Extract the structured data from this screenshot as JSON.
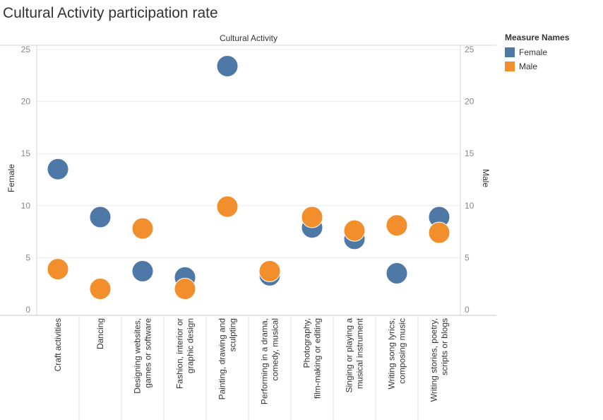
{
  "title": "Cultural Activity participation rate",
  "legend": {
    "title": "Measure Names",
    "items": [
      {
        "label": "Female",
        "color": "#4e79a7"
      },
      {
        "label": "Male",
        "color": "#f28e2b"
      }
    ]
  },
  "chart_data": {
    "type": "scatter",
    "title": "Cultural Activity participation rate",
    "column_header": "Cultural Activity",
    "ylabel_left": "Female",
    "ylabel_right": "Male",
    "ylim": [
      0,
      25
    ],
    "yticks": [
      0,
      5,
      10,
      15,
      20,
      25
    ],
    "grid": true,
    "legend_position": "top-right",
    "categories": [
      [
        "Craft activities"
      ],
      [
        "Dancing"
      ],
      [
        "Designing websites,",
        "games or software"
      ],
      [
        "Fashion, interior or",
        "graphic design"
      ],
      [
        "Painting, drawing and",
        "sculpting"
      ],
      [
        "Performing in a drama,",
        "comedy, musical"
      ],
      [
        "Photography,",
        "film-making or editing"
      ],
      [
        "Singing or playing a",
        "musical instrument"
      ],
      [
        "Writing song lyrics,",
        "composing music"
      ],
      [
        "Writing stories, poetry,",
        "scripts or blogs"
      ]
    ],
    "series": [
      {
        "name": "Female",
        "color": "#4e79a7",
        "values": [
          13.5,
          8.9,
          3.7,
          3.1,
          23.4,
          3.3,
          7.9,
          6.8,
          3.5,
          8.9
        ]
      },
      {
        "name": "Male",
        "color": "#f28e2b",
        "values": [
          3.9,
          2.0,
          7.8,
          2.0,
          9.9,
          3.7,
          8.9,
          7.6,
          8.1,
          7.4
        ]
      }
    ]
  }
}
